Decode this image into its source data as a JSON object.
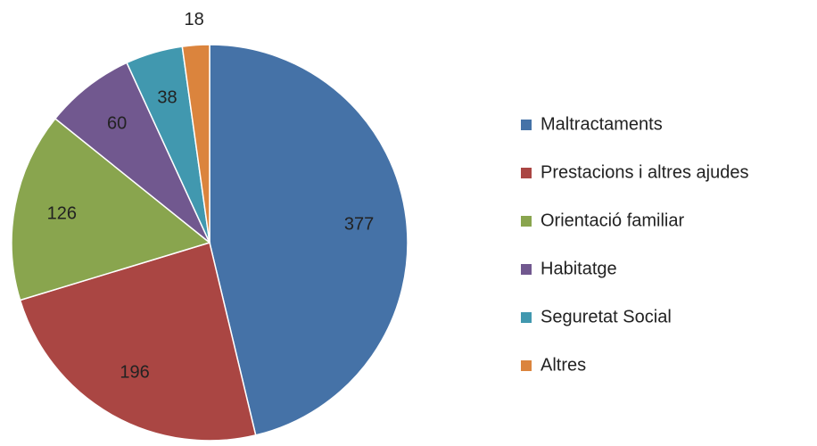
{
  "chart_data": {
    "type": "pie",
    "categories": [
      "Maltractaments",
      "Prestacions i altres ajudes",
      "Orientació familiar",
      "Habitatge",
      "Seguretat Social",
      "Altres"
    ],
    "values": [
      377,
      196,
      126,
      60,
      38,
      18
    ],
    "colors": [
      "#4572a7",
      "#aa4643",
      "#89a54e",
      "#71588f",
      "#4198af",
      "#db843d"
    ],
    "legend": "right"
  }
}
